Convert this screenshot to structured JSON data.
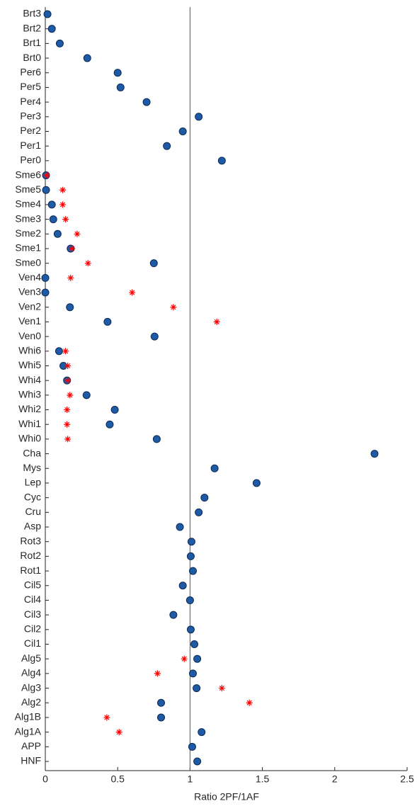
{
  "chart_data": {
    "type": "scatter",
    "categories": [
      "Brt3",
      "Brt2",
      "Brt1",
      "Brt0",
      "Per6",
      "Per5",
      "Per4",
      "Per3",
      "Per2",
      "Per1",
      "Per0",
      "Sme6",
      "Sme5",
      "Sme4",
      "Sme3",
      "Sme2",
      "Sme1",
      "Sme0",
      "Ven4",
      "Ven3",
      "Ven2",
      "Ven1",
      "Ven0",
      "Whi6",
      "Whi5",
      "Whi4",
      "Whi3",
      "Whi2",
      "Whi1",
      "Whi0",
      "Cha",
      "Mys",
      "Lep",
      "Cyc",
      "Cru",
      "Asp",
      "Rot3",
      "Rot2",
      "Rot1",
      "Cil5",
      "Cil4",
      "Cil3",
      "Cil2",
      "Cil1",
      "Alg5",
      "Alg4",
      "Alg3",
      "Alg2",
      "Alg1B",
      "Alg1A",
      "APP",
      "HNF"
    ],
    "series": [
      {
        "color": "#1f5aa6",
        "marker": "circle",
        "values": [
          0.015,
          0.045,
          0.1,
          0.29,
          0.5,
          0.52,
          0.7,
          1.06,
          0.95,
          0.84,
          1.22,
          0.005,
          0.005,
          0.045,
          0.055,
          0.085,
          0.175,
          0.75,
          0,
          0,
          0.17,
          0.43,
          0.755,
          0.095,
          0.125,
          0.15,
          0.285,
          0.48,
          0.445,
          0.77,
          2.275,
          1.17,
          1.46,
          1.1,
          1.06,
          0.93,
          1.01,
          1.005,
          1.02,
          0.95,
          1.0,
          0.885,
          1.005,
          1.03,
          1.05,
          1.02,
          1.045,
          0.8,
          0.8,
          1.08,
          1.015,
          1.05
        ]
      },
      {
        "color": "#ff0000",
        "marker": "asterisk",
        "values": [
          null,
          null,
          null,
          null,
          null,
          null,
          null,
          null,
          null,
          null,
          null,
          0.01,
          0.12,
          0.12,
          0.14,
          0.22,
          0.185,
          0.295,
          0.175,
          0.6,
          0.885,
          1.185,
          null,
          0.14,
          0.155,
          0.155,
          0.17,
          0.15,
          0.15,
          0.155,
          null,
          null,
          null,
          null,
          null,
          null,
          null,
          null,
          null,
          null,
          null,
          null,
          null,
          null,
          0.96,
          0.775,
          1.22,
          1.41,
          0.425,
          0.51,
          null,
          null
        ]
      }
    ],
    "xlabel": "Ratio 2PF/1AF",
    "xlim": [
      0,
      2.5
    ],
    "xticks": [
      0,
      0.5,
      1,
      1.5,
      2,
      2.5
    ],
    "vline": 1
  }
}
